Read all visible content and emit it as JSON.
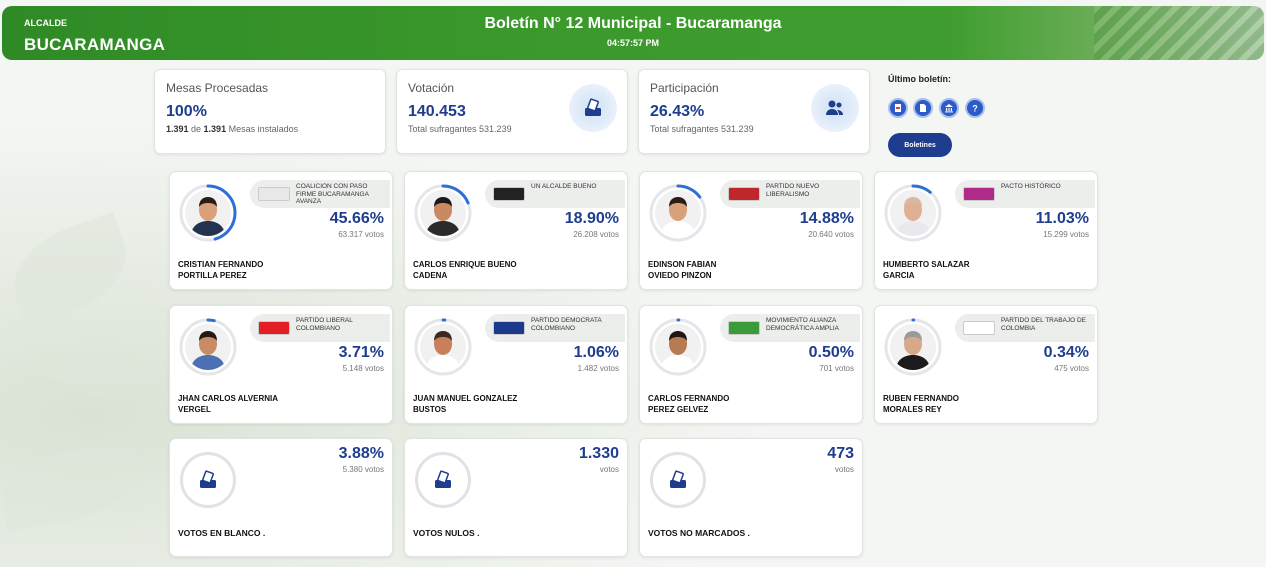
{
  "header": {
    "small_label": "ALCALDE",
    "big_label": "BUCARAMANGA",
    "title": "Boletín N° 12 Municipal - Bucaramanga",
    "time": "04:57:57 PM"
  },
  "summary": [
    {
      "label": "Mesas Procesadas",
      "value": "100%",
      "sub_strong_1": "1.391",
      "sub_mid": " de ",
      "sub_strong_2": "1.391",
      "sub_end": " Mesas instalados",
      "icon": "none"
    },
    {
      "label": "Votación",
      "value": "140.453",
      "sub": "Total sufragantes 531.239",
      "icon": "ballot-box-icon"
    },
    {
      "label": "Participación",
      "value": "26.43%",
      "sub": "Total sufragantes 531.239",
      "icon": "people-icon"
    }
  ],
  "ultimo_boletin": {
    "title": "Último boletín:",
    "icons": [
      "pdf-icon",
      "document-icon",
      "building-icon",
      "help-icon"
    ],
    "button_label": "Boletines"
  },
  "candidates": [
    {
      "name_line1": "CRISTIAN FERNANDO",
      "name_line2": "PORTILLA PEREZ",
      "party": "COALICION CON PASO FIRME BUCARAMANGA AVANZA",
      "pct": "45.66%",
      "votes": "63.317 votos",
      "share": 0.4566,
      "logo_color": "#e8e8e8",
      "skin": "#d9a07a",
      "hair": "#2b1d16",
      "shirt": "#23324f"
    },
    {
      "name_line1": "CARLOS ENRIQUE BUENO",
      "name_line2": "CADENA",
      "party": "UN ALCALDE BUENO",
      "pct": "18.90%",
      "votes": "26.208 votos",
      "share": 0.189,
      "logo_color": "#222222",
      "skin": "#c98a62",
      "hair": "#1a1a1a",
      "shirt": "#2b2b2b"
    },
    {
      "name_line1": "EDINSON FABIAN",
      "name_line2": "OVIEDO PINZON",
      "party": "PARTIDO NUEVO LIBERALISMO",
      "pct": "14.88%",
      "votes": "20.640 votos",
      "share": 0.1488,
      "logo_color": "#c0272d",
      "skin": "#d8a17c",
      "hair": "#2a1d14",
      "shirt": "#ffffff"
    },
    {
      "name_line1": "HUMBERTO SALAZAR",
      "name_line2": "GARCIA",
      "party": "PACTO HISTÓRICO",
      "pct": "11.03%",
      "votes": "15.299 votos",
      "share": 0.1103,
      "logo_color": "#b02a8a",
      "skin": "#e0b095",
      "hair": "#d9b9a3",
      "shirt": "#e8e8ee"
    },
    {
      "name_line1": "JHAN CARLOS ALVERNIA",
      "name_line2": "VERGEL",
      "party": "PARTIDO LIBERAL COLOMBIANO",
      "pct": "3.71%",
      "votes": "5.148 votos",
      "share": 0.0371,
      "logo_color": "#e31e24",
      "skin": "#c78c66",
      "hair": "#241a14",
      "shirt": "#4d6fb3"
    },
    {
      "name_line1": "JUAN MANUEL GONZALEZ",
      "name_line2": "BUSTOS",
      "party": "PARTIDO DEMOCRATA COLOMBIANO",
      "pct": "1.06%",
      "votes": "1.482 votos",
      "share": 0.0106,
      "logo_color": "#1c3a8c",
      "skin": "#c9805a",
      "hair": "#3a2a1f",
      "shirt": "#ffffff"
    },
    {
      "name_line1": "CARLOS FERNANDO",
      "name_line2": "PEREZ GELVEZ",
      "party": "MOVIMIENTO ALIANZA DEMOCRÁTICA AMPLIA",
      "pct": "0.50%",
      "votes": "701 votos",
      "share": 0.005,
      "logo_color": "#3a9b3a",
      "skin": "#b87a52",
      "hair": "#1e1712",
      "shirt": "#ffffff"
    },
    {
      "name_line1": "RUBEN FERNANDO",
      "name_line2": "MORALES REY",
      "party": "PARTIDO DEL TRABAJO DE COLOMBIA",
      "pct": "0.34%",
      "votes": "475 votos",
      "share": 0.0034,
      "logo_color": "#ffffff",
      "skin": "#d7a88a",
      "hair": "#9a9a9a",
      "shirt": "#1b1b1b"
    }
  ],
  "special": [
    {
      "label": "VOTOS EN BLANCO .",
      "value": "3.88%",
      "votes": "5.380 votos"
    },
    {
      "label": "VOTOS NULOS .",
      "value": "1.330",
      "votes": "votos"
    },
    {
      "label": "VOTOS NO MARCADOS .",
      "value": "473",
      "votes": "votos"
    }
  ],
  "colors": {
    "accent": "#1e3d8f",
    "header_green": "#3c9a2c",
    "ring": "#2d6fd6"
  }
}
